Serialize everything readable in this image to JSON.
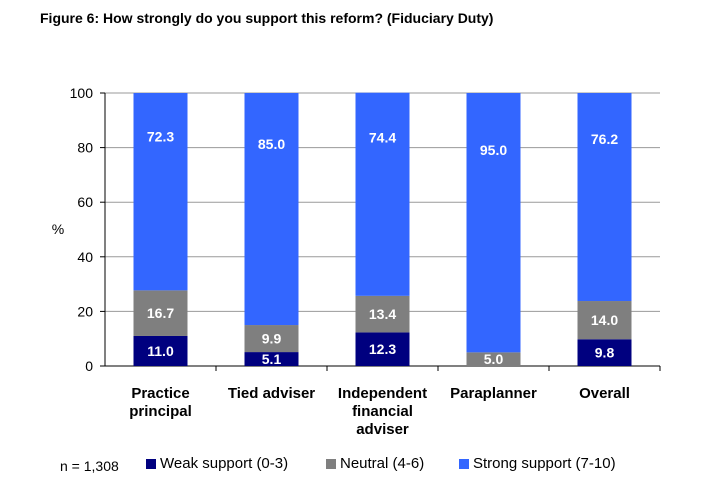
{
  "title": "Figure 6: How strongly do you support this reform? (Fiduciary Duty)",
  "sample_note": "n = 1,308",
  "colors": {
    "weak": "#00007f",
    "neutral": "#7f7f7f",
    "strong": "#3366ff",
    "grid": "#9a9a9a"
  },
  "chart_data": {
    "type": "bar",
    "stacked": true,
    "ylabel": "%",
    "ylim": [
      0,
      100
    ],
    "yticks": [
      0,
      20,
      40,
      60,
      80,
      100
    ],
    "grid": true,
    "legend_position": "bottom",
    "categories": [
      [
        "Practice",
        "principal"
      ],
      [
        "Tied adviser"
      ],
      [
        "Independent",
        "financial",
        "adviser"
      ],
      [
        "Paraplanner"
      ],
      [
        "Overall"
      ]
    ],
    "series": [
      {
        "name": "Weak support (0-3)",
        "key": "weak",
        "values": [
          11.0,
          5.1,
          12.3,
          0,
          9.8
        ],
        "labels": [
          "11.0",
          "5.1",
          "12.3",
          "",
          "9.8"
        ]
      },
      {
        "name": "Neutral (4-6)",
        "key": "neutral",
        "values": [
          16.7,
          9.9,
          13.4,
          5.0,
          14.0
        ],
        "labels": [
          "16.7",
          "9.9",
          "13.4",
          "5.0",
          "14.0"
        ]
      },
      {
        "name": "Strong support (7-10)",
        "key": "strong",
        "values": [
          72.3,
          85.0,
          74.4,
          95.0,
          76.2
        ],
        "labels": [
          "72.3",
          "85.0",
          "74.4",
          "95.0",
          "76.2"
        ]
      }
    ]
  }
}
